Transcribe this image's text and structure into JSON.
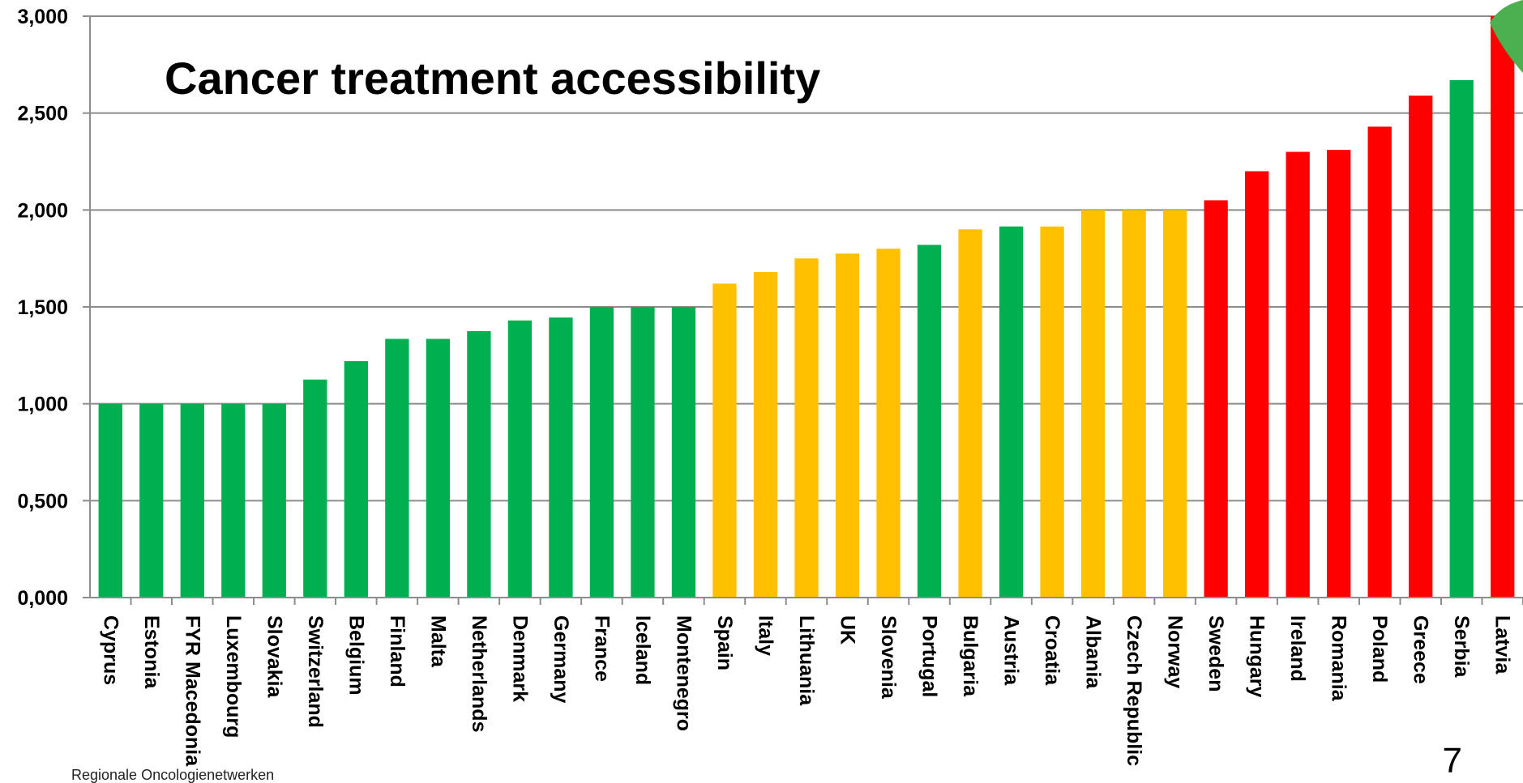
{
  "footer": {
    "text": "Regionale Oncologienetwerken"
  },
  "page": {
    "number": "7"
  },
  "colors": {
    "green": "#00B050",
    "amber": "#FFC000",
    "red": "#FF0000",
    "grid": "#8C8C8C",
    "deco": "#4CAF50"
  },
  "chart_data": {
    "type": "bar",
    "title": "Cancer treatment accessibility",
    "xlabel": "",
    "ylabel": "",
    "ylim": [
      0,
      3
    ],
    "yticks": [
      0,
      0.5,
      1,
      1.5,
      2,
      2.5,
      3
    ],
    "ytick_labels": [
      "0,000",
      "0,500",
      "1,000",
      "1,500",
      "2,000",
      "2,500",
      "3,000"
    ],
    "grid": true,
    "legend": "none",
    "categories": [
      "Cyprus",
      "Estonia",
      "FYR Macedonia",
      "Luxembourg",
      "Slovakia",
      "Switzerland",
      "Belgium",
      "Finland",
      "Malta",
      "Netherlands",
      "Denmark",
      "Germany",
      "France",
      "Iceland",
      "Montenegro",
      "Spain",
      "Italy",
      "Lithuania",
      "UK",
      "Slovenia",
      "Portugal",
      "Bulgaria",
      "Austria",
      "Croatia",
      "Albania",
      "Czech Republic",
      "Norway",
      "Sweden",
      "Hungary",
      "Ireland",
      "Romania",
      "Poland",
      "Greece",
      "Serbia",
      "Latvia"
    ],
    "values": [
      1.0,
      1.0,
      1.0,
      1.0,
      1.0,
      1.125,
      1.22,
      1.335,
      1.335,
      1.375,
      1.43,
      1.445,
      1.5,
      1.5,
      1.5,
      1.62,
      1.68,
      1.75,
      1.775,
      1.8,
      1.82,
      1.9,
      1.915,
      1.915,
      2.0,
      2.0,
      2.0,
      2.05,
      2.2,
      2.3,
      2.31,
      2.43,
      2.59,
      2.67,
      3.0
    ],
    "bar_colors": [
      "green",
      "green",
      "green",
      "green",
      "green",
      "green",
      "green",
      "green",
      "green",
      "green",
      "green",
      "green",
      "green",
      "green",
      "green",
      "amber",
      "amber",
      "amber",
      "amber",
      "amber",
      "green",
      "amber",
      "green",
      "amber",
      "amber",
      "amber",
      "amber",
      "red",
      "red",
      "red",
      "red",
      "red",
      "red",
      "green",
      "red"
    ]
  }
}
